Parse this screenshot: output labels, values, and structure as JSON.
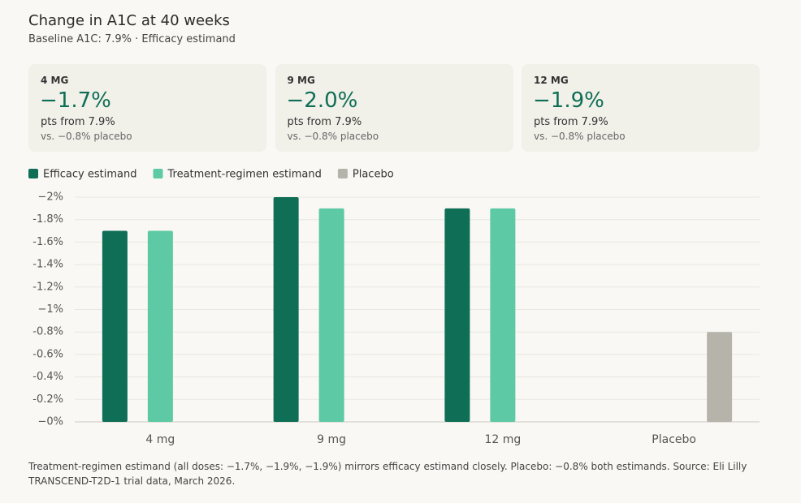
{
  "header": {
    "title": "Change in A1C at 40 weeks",
    "subtitle": "Baseline A1C: 7.9% · Efficacy estimand"
  },
  "cards": [
    {
      "label": "4 MG",
      "value": "−1.7%",
      "sub": "pts from 7.9%",
      "note": "vs. −0.8% placebo"
    },
    {
      "label": "9 MG",
      "value": "−2.0%",
      "sub": "pts from 7.9%",
      "note": "vs. −0.8% placebo"
    },
    {
      "label": "12 MG",
      "value": "−1.9%",
      "sub": "pts from 7.9%",
      "note": "vs. −0.8% placebo"
    }
  ],
  "chart_data": {
    "type": "bar",
    "categories": [
      "4 mg",
      "9 mg",
      "12 mg",
      "Placebo"
    ],
    "series": [
      {
        "name": "Efficacy estimand",
        "color": "#0f6e56",
        "values": [
          -1.7,
          -2.0,
          -1.9,
          null
        ]
      },
      {
        "name": "Treatment-regimen estimand",
        "color": "#5dc9a5",
        "values": [
          -1.7,
          -1.9,
          -1.9,
          null
        ]
      },
      {
        "name": "Placebo",
        "color": "#b6b4aa",
        "values": [
          null,
          null,
          null,
          -0.8
        ]
      }
    ],
    "ylim": [
      0,
      -2
    ],
    "yticks": [
      {
        "value": -2,
        "label": "−2%"
      },
      {
        "value": -1.8,
        "label": "-1.8%"
      },
      {
        "value": -1.6,
        "label": "-1.6%"
      },
      {
        "value": -1.4,
        "label": "-1.4%"
      },
      {
        "value": -1.2,
        "label": "-1.2%"
      },
      {
        "value": -1,
        "label": "−1%"
      },
      {
        "value": -0.8,
        "label": "-0.8%"
      },
      {
        "value": -0.6,
        "label": "-0.6%"
      },
      {
        "value": -0.4,
        "label": "-0.4%"
      },
      {
        "value": -0.2,
        "label": "-0.2%"
      },
      {
        "value": 0,
        "label": "−0%"
      }
    ],
    "grid": true,
    "legend": "top-left"
  },
  "footnote": "Treatment-regimen estimand (all doses: −1.7%, −1.9%, −1.9%) mirrors efficacy estimand closely. Placebo: −0.8% both estimands. Source: Eli Lilly TRANSCEND-T2D-1 trial data, March 2026."
}
